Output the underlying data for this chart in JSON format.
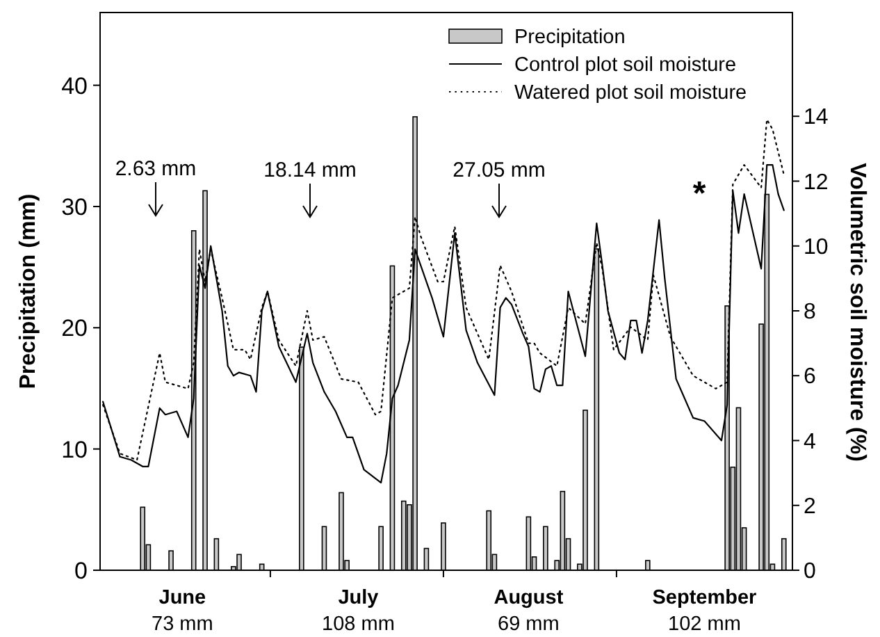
{
  "chart_data": {
    "type": "bar",
    "ylabel": "Precipitation (mm)",
    "y2label": "Volumetric soil moisture (%)",
    "categories": [
      null,
      null,
      null,
      null,
      null,
      null,
      null,
      null,
      null,
      null,
      null,
      null,
      null,
      null,
      "June\n73 mm",
      null,
      null,
      null,
      null,
      null,
      null,
      null,
      null,
      null,
      null,
      null,
      null,
      null,
      null,
      null,
      null,
      null,
      null,
      null,
      null,
      null,
      null,
      null,
      null,
      null,
      null,
      null,
      null,
      null,
      null,
      "July\n108 mm",
      null,
      null,
      null,
      null,
      null,
      null,
      null,
      null,
      null,
      null,
      null,
      null,
      null,
      null,
      null,
      null,
      null,
      null,
      null,
      null,
      null,
      null,
      null,
      null,
      null,
      null,
      null,
      null,
      null,
      "August\n69 mm",
      null,
      null,
      null,
      null,
      null,
      null,
      null,
      null,
      null,
      null,
      null,
      null,
      null,
      null,
      null,
      null,
      null,
      null,
      null,
      null,
      null,
      null,
      null,
      null,
      null,
      null,
      null,
      null,
      null,
      null,
      "September\n102 mm",
      null,
      null,
      null,
      null,
      null,
      null,
      null,
      null,
      null,
      null,
      null,
      null,
      null,
      null,
      null
    ],
    "ylim": [
      0,
      46
    ],
    "yticks": [
      0,
      10,
      20,
      30,
      40
    ],
    "y2lim": [
      0,
      17.2
    ],
    "y2ticks": [
      0,
      2,
      4,
      6,
      8,
      10,
      12,
      14
    ],
    "legend": "top right",
    "marker": "none",
    "series": [
      {
        "name": "Precipitation",
        "color": "#c8c8c8",
        "values": [
          null,
          null,
          null,
          null,
          null,
          null,
          null,
          5.2,
          2.1,
          null,
          null,
          null,
          1.6,
          null,
          null,
          null,
          28.0,
          null,
          31.3,
          null,
          2.6,
          null,
          null,
          0.3,
          1.3,
          null,
          null,
          null,
          0.5,
          null,
          null,
          null,
          null,
          null,
          null,
          18.4,
          null,
          null,
          null,
          3.6,
          null,
          null,
          6.4,
          0.8,
          null,
          null,
          null,
          null,
          null,
          3.6,
          null,
          25.1,
          null,
          5.7,
          5.4,
          37.4,
          null,
          1.8,
          null,
          null,
          3.9,
          null,
          null,
          null,
          null,
          null,
          null,
          null,
          4.9,
          1.3,
          null,
          null,
          null,
          null,
          null,
          4.4,
          1.1,
          null,
          3.6,
          null,
          0.8,
          6.5,
          2.6,
          null,
          0.5,
          13.2,
          null,
          26.5,
          null,
          null,
          null,
          null,
          null,
          null,
          null,
          null,
          0.8,
          null,
          null,
          null,
          null,
          null,
          null,
          null,
          null,
          null,
          null,
          null,
          null,
          null,
          21.8,
          8.5,
          13.4,
          3.5,
          null,
          null,
          20.3,
          31.0,
          0.5,
          null,
          2.6,
          null
        ]
      },
      {
        "name": "Control plot soil moisture",
        "type": "line",
        "axis": "y2",
        "color": "#000000",
        "line_style": "solid",
        "values": [
          5.2,
          null,
          null,
          3.5,
          null,
          3.4,
          null,
          3.2,
          3.2,
          null,
          5.0,
          4.8,
          null,
          4.9,
          null,
          4.1,
          5.3,
          9.4,
          8.7,
          10.0,
          null,
          8.0,
          6.3,
          6.0,
          6.1,
          null,
          6.0,
          5.5,
          8.0,
          8.6,
          null,
          6.9,
          null,
          null,
          5.8,
          null,
          7.3,
          6.4,
          null,
          5.5,
          null,
          4.9,
          null,
          4.1,
          4.1,
          null,
          3.1,
          null,
          null,
          2.7,
          3.6,
          5.3,
          5.7,
          null,
          7.1,
          9.9,
          null,
          null,
          8.4,
          null,
          7.2,
          null,
          10.4,
          null,
          7.4,
          null,
          6.4,
          null,
          null,
          5.4,
          8.1,
          8.4,
          8.2,
          null,
          7.3,
          6.9,
          5.6,
          5.5,
          6.2,
          6.3,
          5.7,
          5.7,
          8.6,
          null,
          null,
          6.6,
          null,
          10.7,
          9.4,
          8.0,
          null,
          6.7,
          6.5,
          7.7,
          7.7,
          6.7,
          7.7,
          null,
          10.8,
          9.0,
          null,
          5.9,
          5.5,
          null,
          4.7,
          null,
          4.6,
          null,
          null,
          4.0,
          5.1,
          11.7,
          10.4,
          11.6,
          null,
          null,
          9.3,
          12.5,
          12.5,
          11.6,
          11.1,
          null
        ]
      },
      {
        "name": "Watered plot soil moisture",
        "type": "line",
        "axis": "y2",
        "color": "#000000",
        "line_style": "dotted",
        "values": [
          5.1,
          null,
          null,
          3.6,
          null,
          null,
          3.4,
          null,
          null,
          null,
          6.7,
          5.8,
          null,
          null,
          null,
          5.6,
          6.4,
          9.9,
          8.9,
          9.9,
          null,
          8.4,
          null,
          6.8,
          null,
          6.8,
          6.5,
          null,
          8.1,
          8.6,
          null,
          7.1,
          null,
          null,
          6.3,
          null,
          8.0,
          7.1,
          null,
          7.2,
          null,
          null,
          5.9,
          null,
          null,
          5.8,
          null,
          null,
          4.8,
          4.9,
          null,
          8.4,
          null,
          null,
          8.7,
          10.9,
          10.3,
          null,
          null,
          8.9,
          8.9,
          null,
          10.6,
          null,
          8.1,
          null,
          null,
          null,
          6.5,
          null,
          9.4,
          null,
          8.6,
          null,
          null,
          7.0,
          7.0,
          6.7,
          null,
          null,
          6.3,
          null,
          8.1,
          null,
          null,
          7.6,
          null,
          10.1,
          9.3,
          null,
          6.8,
          null,
          null,
          7.5,
          null,
          null,
          7.1,
          9.1,
          null,
          null,
          7.2,
          null,
          null,
          null,
          6.0,
          null,
          null,
          null,
          5.6,
          null,
          5.8,
          11.9,
          null,
          12.5,
          null,
          null,
          11.8,
          13.9,
          13.6,
          null,
          12.2,
          null
        ]
      }
    ],
    "annotations": [
      "2.63 mm",
      "18.14 mm",
      "27.05 mm",
      "*"
    ]
  }
}
